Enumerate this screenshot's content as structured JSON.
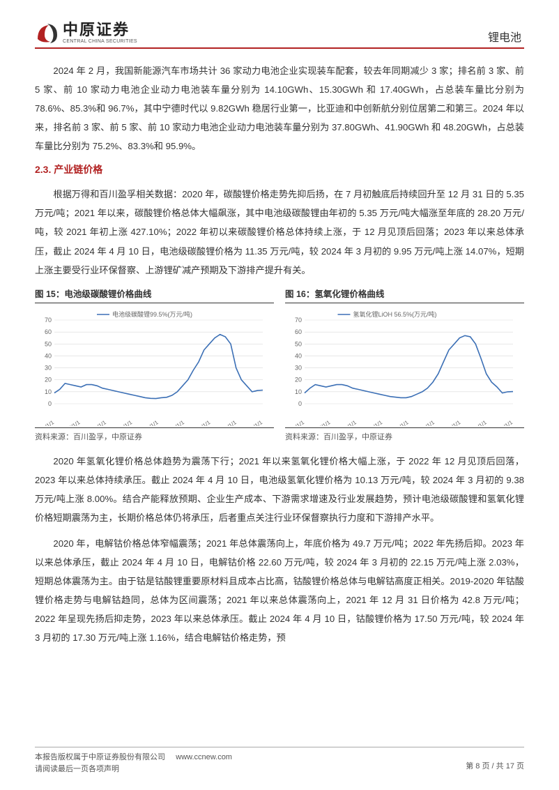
{
  "header": {
    "logo_cn": "中原证券",
    "logo_en": "CENTRAL CHINA SECURITIES",
    "title": "锂电池"
  },
  "para1": "2024 年 2 月，我国新能源汽车市场共计 36 家动力电池企业实现装车配套，较去年同期减少 3 家；排名前 3 家、前 5 家、前 10 家动力电池企业动力电池装车量分别为 14.10GWh、15.30GWh 和 17.40GWh，占总装车量比分别为 78.6%、85.3%和 96.7%，其中宁德时代以 9.82GWh 稳居行业第一，比亚迪和中创新航分别位居第二和第三。2024 年以来，排名前 3 家、前 5 家、前 10 家动力电池企业动力电池装车量分别为 37.80GWh、41.90GWh 和 48.20GWh，占总装车量比分别为 75.2%、83.3%和 95.9%。",
  "section_heading": "2.3. 产业链价格",
  "para2": "根据万得和百川盈孚相关数据：2020 年，碳酸锂价格走势先抑后扬，在 7 月初触底后持续回升至 12 月 31 日的 5.35 万元/吨；2021 年以来，碳酸锂价格总体大幅飙涨，其中电池级碳酸锂由年初的 5.35 万元/吨大幅涨至年底的 28.20 万元/吨，较 2021 年初上涨 427.10%；2022 年初以来碳酸锂价格总体持续上涨，于 12 月见顶后回落；2023 年以来总体承压，截止 2024 年 4 月 10 日，电池级碳酸锂价格为 11.35 万元/吨，较 2024 年 3 月初的 9.95 万元/吨上涨 14.07%，短期上涨主要受行业环保督察、上游锂矿减产预期及下游排产提升有关。",
  "chart15": {
    "title": "图 15：电池级碳酸锂价格曲线",
    "legend": "电池级碳酸锂99.5%(万元/吨)",
    "source": "资料来源：百川盈孚，中原证券",
    "type": "line",
    "line_color": "#3b6fb5",
    "grid_color": "#d9d9d9",
    "text_color": "#666666",
    "label_fontsize": 9,
    "ylim": [
      0,
      70
    ],
    "ytick_step": 10,
    "x_labels": [
      "2016/1/1",
      "2017/1/1",
      "2018/1/1",
      "2019/1/1",
      "2020/1/1",
      "2021/1/1",
      "2022/1/1",
      "2023/1/1",
      "2024/1/1"
    ],
    "values": [
      9,
      12,
      17,
      16,
      15,
      14,
      16,
      16,
      15,
      13,
      12,
      11,
      10,
      9,
      8,
      7,
      6,
      5,
      4.5,
      4.3,
      5,
      5.35,
      7,
      10,
      15,
      20,
      28,
      35,
      45,
      50,
      55,
      58,
      56,
      50,
      30,
      20,
      15,
      10,
      11,
      11.35
    ]
  },
  "chart16": {
    "title": "图 16：氢氧化锂价格曲线",
    "legend": "氢氧化锂LiOH 56.5%(万元/吨)",
    "source": "资料来源：百川盈孚，中原证券",
    "type": "line",
    "line_color": "#3b6fb5",
    "grid_color": "#d9d9d9",
    "text_color": "#666666",
    "label_fontsize": 9,
    "ylim": [
      0,
      70
    ],
    "ytick_step": 10,
    "x_labels": [
      "2016/1/1",
      "2017/1/1",
      "2018/1/1",
      "2019/1/1",
      "2020/1/1",
      "2021/1/1",
      "2022/1/1",
      "2023/1/1",
      "2024/1/1"
    ],
    "values": [
      9,
      13,
      16,
      15,
      14,
      15,
      16,
      16,
      15,
      13,
      12,
      11,
      10,
      9,
      8,
      7,
      6,
      5.5,
      5,
      5,
      6,
      8,
      10,
      13,
      18,
      25,
      35,
      45,
      50,
      55,
      57,
      56,
      50,
      38,
      25,
      18,
      14,
      9,
      10,
      10.13
    ]
  },
  "para3": "2020 年氢氧化锂价格总体趋势为震荡下行；2021 年以来氢氧化锂价格大幅上涨，于 2022 年 12 月见顶后回落，2023 年以来总体持续承压。截止 2024 年 4 月 10 日，电池级氢氧化锂价格为 10.13 万元/吨，较 2024 年 3 月初的 9.38 万元/吨上涨 8.00%。结合产能释放预期、企业生产成本、下游需求增速及行业发展趋势，预计电池级碳酸锂和氢氧化锂价格短期震荡为主，长期价格总体仍将承压，后者重点关注行业环保督察执行力度和下游排产水平。",
  "para4": "2020 年，电解钴价格总体窄幅震荡；2021 年总体震荡向上，年底价格为 49.7 万元/吨；2022 年先扬后抑。2023 年以来总体承压，截止 2024 年 4 月 10 日，电解钴价格 22.60 万元/吨，较 2024 年 3 月初的 22.15 万元/吨上涨 2.03%，短期总体震荡为主。由于钴是钴酸锂重要原材料且成本占比高，钴酸锂价格总体与电解钴高度正相关。2019-2020 年钴酸锂价格走势与电解钴趋同，总体为区间震荡；2021 年以来总体震荡向上，2021 年 12 月 31 日价格为 42.8 万元/吨；2022 年呈现先扬后抑走势，2023 年以来总体承压。截止 2024 年 4 月 10 日，钴酸锂价格为 17.50 万元/吨，较 2024 年 3 月初的 17.30 万元/吨上涨 1.16%，结合电解钴价格走势，预",
  "footer": {
    "copyright": "本报告版权属于中原证券股份有限公司",
    "url": "www.ccnew.com",
    "disclaimer": "请阅读最后一页各项声明",
    "page": "第 8 页 / 共 17 页"
  }
}
